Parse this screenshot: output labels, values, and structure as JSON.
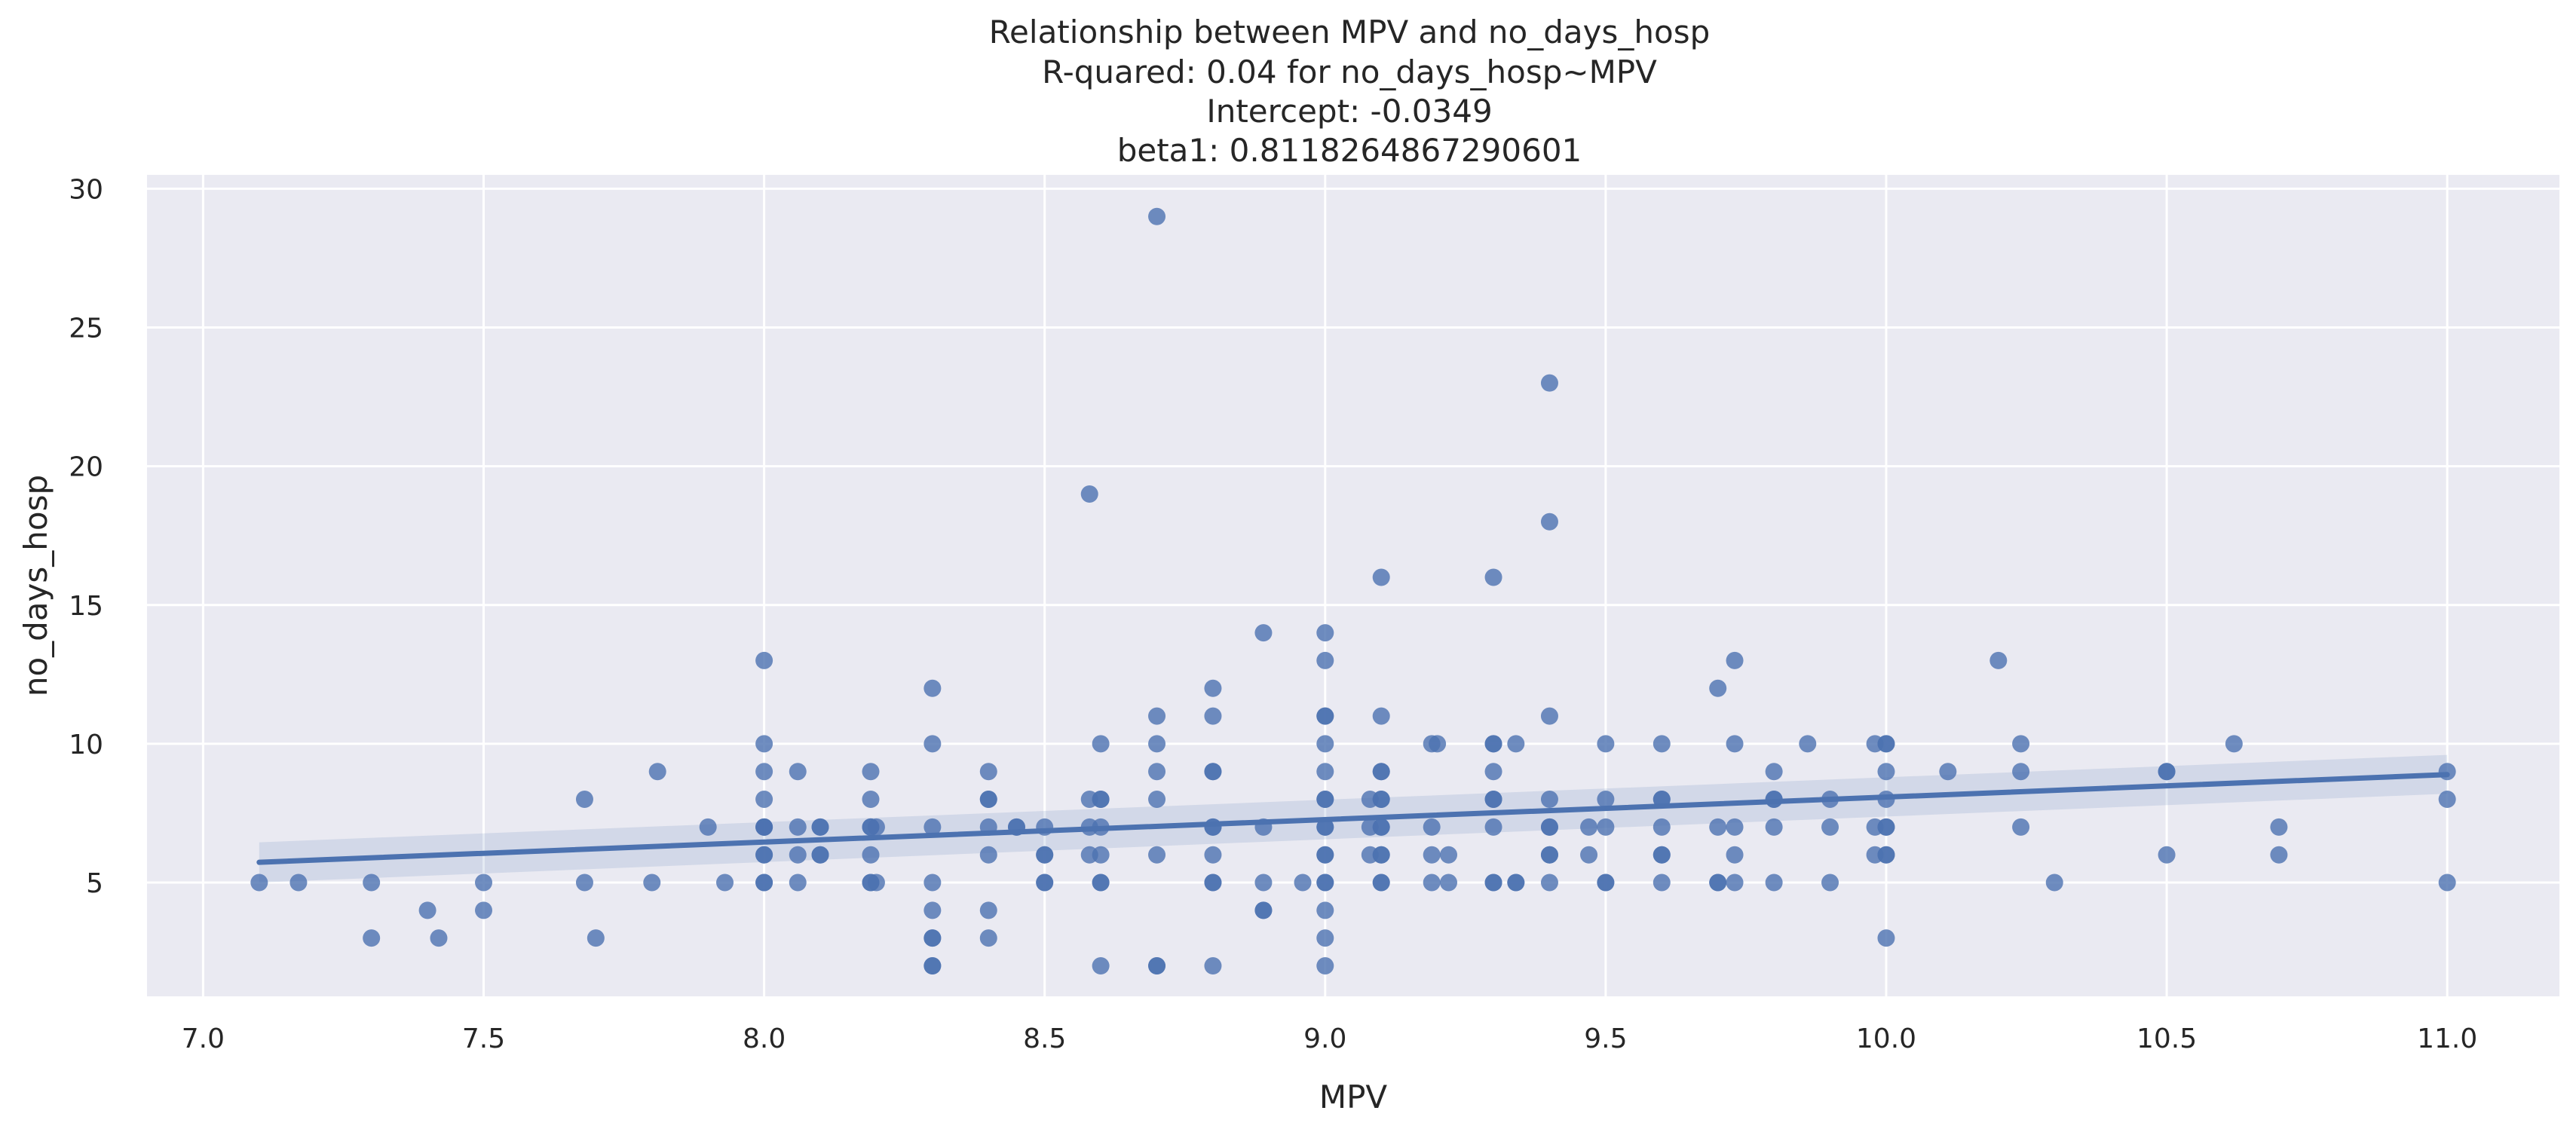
{
  "chart_data": {
    "type": "scatter",
    "title_lines": [
      "Relationship between MPV and no_days_hosp",
      "R-quared: 0.04 for no_days_hosp~MPV",
      "Intercept: -0.0349",
      "beta1: 0.8118264867290601"
    ],
    "xlabel": "MPV",
    "ylabel": "no_days_hosp",
    "xlim": [
      6.9,
      11.2
    ],
    "ylim": [
      0.9,
      30.5
    ],
    "xticks": [
      7.0,
      7.5,
      8.0,
      8.5,
      9.0,
      9.5,
      10.0,
      10.5,
      11.0
    ],
    "xtick_labels": [
      "7.0",
      "7.5",
      "8.0",
      "8.5",
      "9.0",
      "9.5",
      "10.0",
      "10.5",
      "11.0"
    ],
    "yticks": [
      5,
      10,
      15,
      20,
      25,
      30
    ],
    "ytick_labels": [
      "5",
      "10",
      "15",
      "20",
      "25",
      "30"
    ],
    "grid": true,
    "legend": "none",
    "colors": {
      "background": "#eaeaf2",
      "grid": "#ffffff",
      "point": "#4c72b0",
      "line": "#4c72b0",
      "ci_band": "#4c72b0",
      "text": "#262626"
    },
    "regression": {
      "x": [
        7.1,
        11.0
      ],
      "y": [
        5.73,
        8.89
      ],
      "ci_lower": [
        5.0,
        8.2
      ],
      "ci_upper": [
        6.45,
        9.6
      ]
    },
    "points": [
      [
        7.1,
        5
      ],
      [
        7.17,
        5
      ],
      [
        7.3,
        5
      ],
      [
        7.3,
        3
      ],
      [
        7.4,
        4
      ],
      [
        7.42,
        3
      ],
      [
        7.5,
        5
      ],
      [
        7.5,
        4
      ],
      [
        7.68,
        8
      ],
      [
        7.68,
        5
      ],
      [
        7.7,
        3
      ],
      [
        7.8,
        5
      ],
      [
        7.81,
        9
      ],
      [
        7.9,
        7
      ],
      [
        7.93,
        5
      ],
      [
        8.0,
        13
      ],
      [
        8.0,
        10
      ],
      [
        8.0,
        9
      ],
      [
        8.0,
        8
      ],
      [
        8.0,
        7
      ],
      [
        8.0,
        7
      ],
      [
        8.0,
        7
      ],
      [
        8.0,
        6
      ],
      [
        8.0,
        6
      ],
      [
        8.0,
        5
      ],
      [
        8.0,
        5
      ],
      [
        8.06,
        9
      ],
      [
        8.06,
        7
      ],
      [
        8.06,
        6
      ],
      [
        8.06,
        5
      ],
      [
        8.1,
        7
      ],
      [
        8.1,
        7
      ],
      [
        8.1,
        6
      ],
      [
        8.1,
        6
      ],
      [
        8.19,
        9
      ],
      [
        8.19,
        8
      ],
      [
        8.19,
        7
      ],
      [
        8.19,
        7
      ],
      [
        8.19,
        6
      ],
      [
        8.19,
        5
      ],
      [
        8.19,
        5
      ],
      [
        8.2,
        7
      ],
      [
        8.2,
        5
      ],
      [
        8.3,
        12
      ],
      [
        8.3,
        10
      ],
      [
        8.3,
        7
      ],
      [
        8.3,
        5
      ],
      [
        8.3,
        4
      ],
      [
        8.3,
        3
      ],
      [
        8.3,
        3
      ],
      [
        8.3,
        2
      ],
      [
        8.3,
        2
      ],
      [
        8.4,
        9
      ],
      [
        8.4,
        8
      ],
      [
        8.4,
        8
      ],
      [
        8.4,
        7
      ],
      [
        8.4,
        6
      ],
      [
        8.4,
        4
      ],
      [
        8.4,
        3
      ],
      [
        8.45,
        7
      ],
      [
        8.45,
        7
      ],
      [
        8.5,
        7
      ],
      [
        8.5,
        6
      ],
      [
        8.5,
        6
      ],
      [
        8.5,
        5
      ],
      [
        8.5,
        5
      ],
      [
        8.58,
        19
      ],
      [
        8.58,
        8
      ],
      [
        8.58,
        7
      ],
      [
        8.58,
        6
      ],
      [
        8.6,
        10
      ],
      [
        8.6,
        8
      ],
      [
        8.6,
        8
      ],
      [
        8.6,
        7
      ],
      [
        8.6,
        6
      ],
      [
        8.6,
        5
      ],
      [
        8.6,
        5
      ],
      [
        8.6,
        2
      ],
      [
        8.7,
        29
      ],
      [
        8.7,
        11
      ],
      [
        8.7,
        10
      ],
      [
        8.7,
        9
      ],
      [
        8.7,
        8
      ],
      [
        8.7,
        6
      ],
      [
        8.7,
        2
      ],
      [
        8.7,
        2
      ],
      [
        8.8,
        12
      ],
      [
        8.8,
        11
      ],
      [
        8.8,
        9
      ],
      [
        8.8,
        9
      ],
      [
        8.8,
        7
      ],
      [
        8.8,
        7
      ],
      [
        8.8,
        6
      ],
      [
        8.8,
        5
      ],
      [
        8.8,
        5
      ],
      [
        8.8,
        2
      ],
      [
        8.89,
        14
      ],
      [
        8.89,
        7
      ],
      [
        8.89,
        5
      ],
      [
        8.89,
        4
      ],
      [
        8.89,
        4
      ],
      [
        8.96,
        5
      ],
      [
        9.0,
        14
      ],
      [
        9.0,
        13
      ],
      [
        9.0,
        11
      ],
      [
        9.0,
        11
      ],
      [
        9.0,
        10
      ],
      [
        9.0,
        9
      ],
      [
        9.0,
        8
      ],
      [
        9.0,
        8
      ],
      [
        9.0,
        7
      ],
      [
        9.0,
        7
      ],
      [
        9.0,
        6
      ],
      [
        9.0,
        6
      ],
      [
        9.0,
        5
      ],
      [
        9.0,
        5
      ],
      [
        9.0,
        4
      ],
      [
        9.0,
        3
      ],
      [
        9.0,
        2
      ],
      [
        9.08,
        8
      ],
      [
        9.08,
        7
      ],
      [
        9.08,
        6
      ],
      [
        9.1,
        16
      ],
      [
        9.1,
        11
      ],
      [
        9.1,
        9
      ],
      [
        9.1,
        9
      ],
      [
        9.1,
        8
      ],
      [
        9.1,
        8
      ],
      [
        9.1,
        7
      ],
      [
        9.1,
        7
      ],
      [
        9.1,
        6
      ],
      [
        9.1,
        6
      ],
      [
        9.1,
        5
      ],
      [
        9.1,
        5
      ],
      [
        9.19,
        10
      ],
      [
        9.19,
        7
      ],
      [
        9.19,
        6
      ],
      [
        9.19,
        5
      ],
      [
        9.2,
        10
      ],
      [
        9.22,
        6
      ],
      [
        9.22,
        5
      ],
      [
        9.3,
        16
      ],
      [
        9.3,
        10
      ],
      [
        9.3,
        10
      ],
      [
        9.3,
        9
      ],
      [
        9.3,
        8
      ],
      [
        9.3,
        8
      ],
      [
        9.3,
        7
      ],
      [
        9.3,
        5
      ],
      [
        9.3,
        5
      ],
      [
        9.34,
        10
      ],
      [
        9.34,
        5
      ],
      [
        9.34,
        5
      ],
      [
        9.4,
        23
      ],
      [
        9.4,
        18
      ],
      [
        9.4,
        11
      ],
      [
        9.4,
        8
      ],
      [
        9.4,
        7
      ],
      [
        9.4,
        7
      ],
      [
        9.4,
        6
      ],
      [
        9.4,
        6
      ],
      [
        9.4,
        5
      ],
      [
        9.47,
        7
      ],
      [
        9.47,
        6
      ],
      [
        9.5,
        10
      ],
      [
        9.5,
        8
      ],
      [
        9.5,
        7
      ],
      [
        9.5,
        5
      ],
      [
        9.5,
        5
      ],
      [
        9.6,
        10
      ],
      [
        9.6,
        8
      ],
      [
        9.6,
        8
      ],
      [
        9.6,
        7
      ],
      [
        9.6,
        6
      ],
      [
        9.6,
        6
      ],
      [
        9.6,
        5
      ],
      [
        9.7,
        12
      ],
      [
        9.7,
        7
      ],
      [
        9.7,
        5
      ],
      [
        9.7,
        5
      ],
      [
        9.73,
        13
      ],
      [
        9.73,
        10
      ],
      [
        9.73,
        7
      ],
      [
        9.73,
        6
      ],
      [
        9.73,
        5
      ],
      [
        9.8,
        9
      ],
      [
        9.8,
        8
      ],
      [
        9.8,
        8
      ],
      [
        9.8,
        7
      ],
      [
        9.8,
        5
      ],
      [
        9.86,
        10
      ],
      [
        9.9,
        8
      ],
      [
        9.9,
        7
      ],
      [
        9.9,
        5
      ],
      [
        9.98,
        10
      ],
      [
        9.98,
        7
      ],
      [
        9.98,
        6
      ],
      [
        10.0,
        10
      ],
      [
        10.0,
        10
      ],
      [
        10.0,
        9
      ],
      [
        10.0,
        8
      ],
      [
        10.0,
        7
      ],
      [
        10.0,
        7
      ],
      [
        10.0,
        6
      ],
      [
        10.0,
        6
      ],
      [
        10.0,
        3
      ],
      [
        10.11,
        9
      ],
      [
        10.2,
        13
      ],
      [
        10.24,
        10
      ],
      [
        10.24,
        9
      ],
      [
        10.24,
        7
      ],
      [
        10.3,
        5
      ],
      [
        10.5,
        9
      ],
      [
        10.5,
        9
      ],
      [
        10.5,
        6
      ],
      [
        10.62,
        10
      ],
      [
        10.7,
        7
      ],
      [
        10.7,
        6
      ],
      [
        11.0,
        9
      ],
      [
        11.0,
        8
      ],
      [
        11.0,
        5
      ]
    ]
  }
}
